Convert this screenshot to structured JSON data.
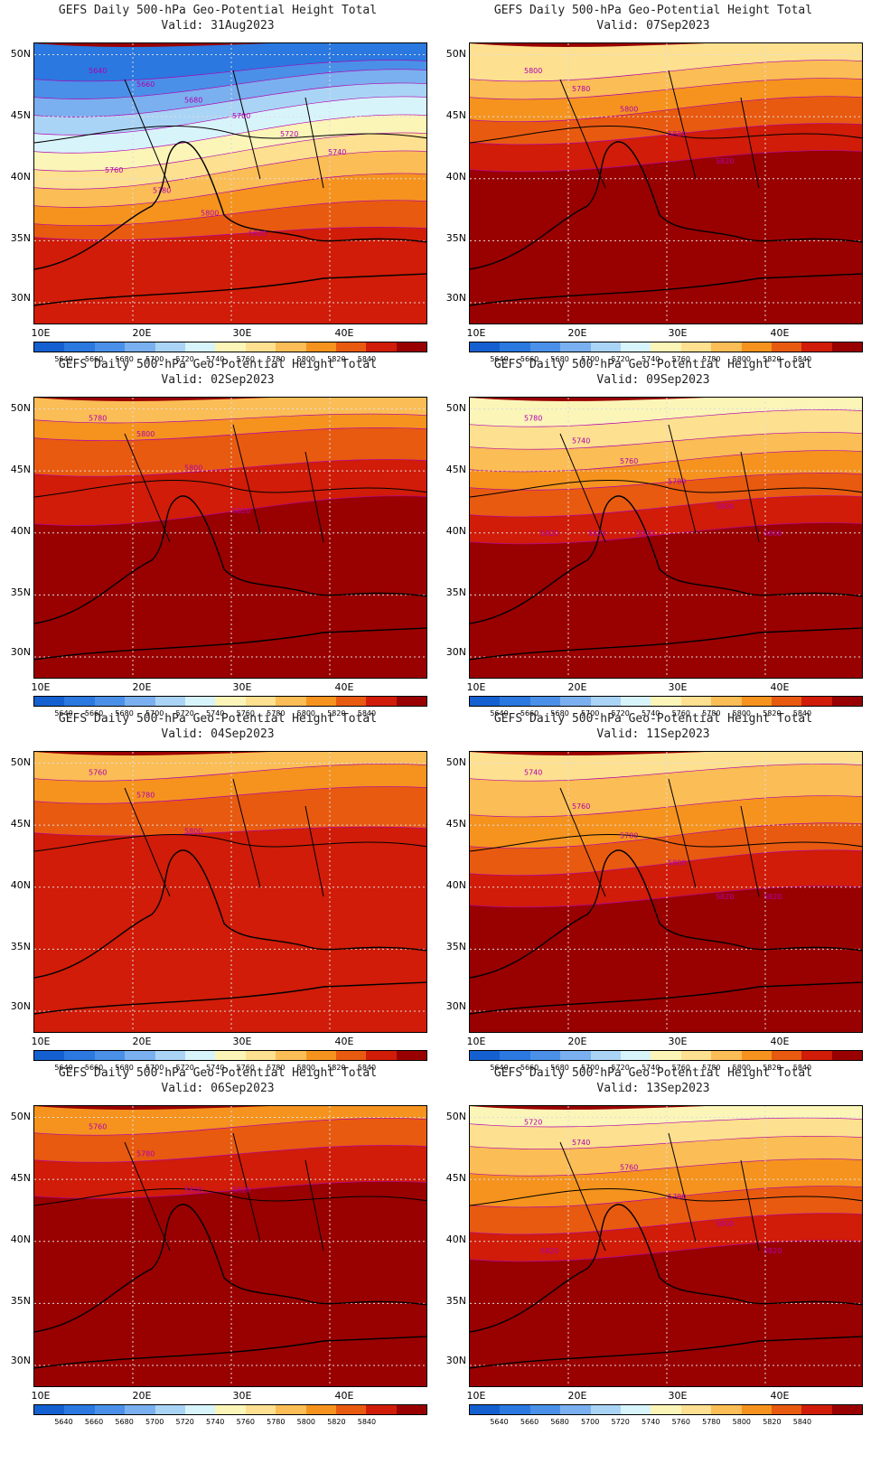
{
  "title_template": "GEFS Daily 500-hPa Geo-Potential Height Total",
  "panels": [
    {
      "title": "GEFS Daily 500-hPa Geo-Potential Height Total",
      "valid": "Valid: 31Aug2023",
      "contour_labels": [
        "5640",
        "5660",
        "5680",
        "5700",
        "5720",
        "5740",
        "5760",
        "5780",
        "5800",
        "5820"
      ]
    },
    {
      "title": "GEFS Daily 500-hPa Geo-Potential Height Total",
      "valid": "Valid: 07Sep2023",
      "contour_labels": [
        "5800",
        "5780",
        "5800",
        "5820",
        "5820"
      ]
    },
    {
      "title": "GEFS Daily 500-hPa Geo-Potential Height Total",
      "valid": "Valid: 02Sep2023",
      "contour_labels": [
        "5780",
        "5800",
        "5800",
        "5820"
      ]
    },
    {
      "title": "GEFS Daily 500-hPa Geo-Potential Height Total",
      "valid": "Valid: 09Sep2023",
      "contour_labels": [
        "5780",
        "5740",
        "5760",
        "5780",
        "5800",
        "5800",
        "5820",
        "5820",
        "5820"
      ]
    },
    {
      "title": "GEFS Daily 500-hPa Geo-Potential Height Total",
      "valid": "Valid: 04Sep2023",
      "contour_labels": [
        "5760",
        "5780",
        "5800"
      ]
    },
    {
      "title": "GEFS Daily 500-hPa Geo-Potential Height Total",
      "valid": "Valid: 11Sep2023",
      "contour_labels": [
        "5740",
        "5760",
        "5780",
        "5800",
        "5820",
        "5820"
      ]
    },
    {
      "title": "GEFS Daily 500-hPa Geo-Potential Height Total",
      "valid": "Valid: 06Sep2023",
      "contour_labels": [
        "5760",
        "5780",
        "5800",
        "5820"
      ]
    },
    {
      "title": "GEFS Daily 500-hPa Geo-Potential Height Total",
      "valid": "Valid: 13Sep2023",
      "contour_labels": [
        "5720",
        "5740",
        "5760",
        "5780",
        "5800",
        "5820",
        "5820"
      ]
    }
  ],
  "axes": {
    "lat_labels": [
      "50N",
      "45N",
      "40N",
      "35N",
      "30N"
    ],
    "lon_labels": [
      "10E",
      "20E",
      "30E",
      "40E"
    ]
  },
  "colorbar": {
    "labels": [
      "5640",
      "5660",
      "5680",
      "5700",
      "5720",
      "5740",
      "5760",
      "5780",
      "5800",
      "5820",
      "5840"
    ],
    "colors": [
      "#1560d0",
      "#2a78e0",
      "#4a90e8",
      "#7ab0ef",
      "#aad4f5",
      "#d8f4fb",
      "#fbf5b8",
      "#fde090",
      "#fbbd55",
      "#f5931e",
      "#e85a10",
      "#d01c08",
      "#990000"
    ]
  },
  "contour_color": "#b000b0"
}
